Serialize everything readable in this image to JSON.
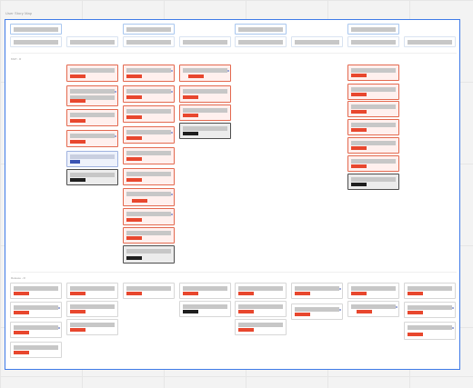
{
  "board": {
    "title": "User Story Map",
    "lanes": [
      {
        "id": "release-1",
        "label": "MVP - R"
      },
      {
        "id": "release-2",
        "label": "Release - R"
      }
    ]
  },
  "legend": {
    "story_color": "#e8472e",
    "done_color": "#1f1f1f",
    "frame_color": "#3f7be8",
    "note_color": "#3a53b3"
  }
}
